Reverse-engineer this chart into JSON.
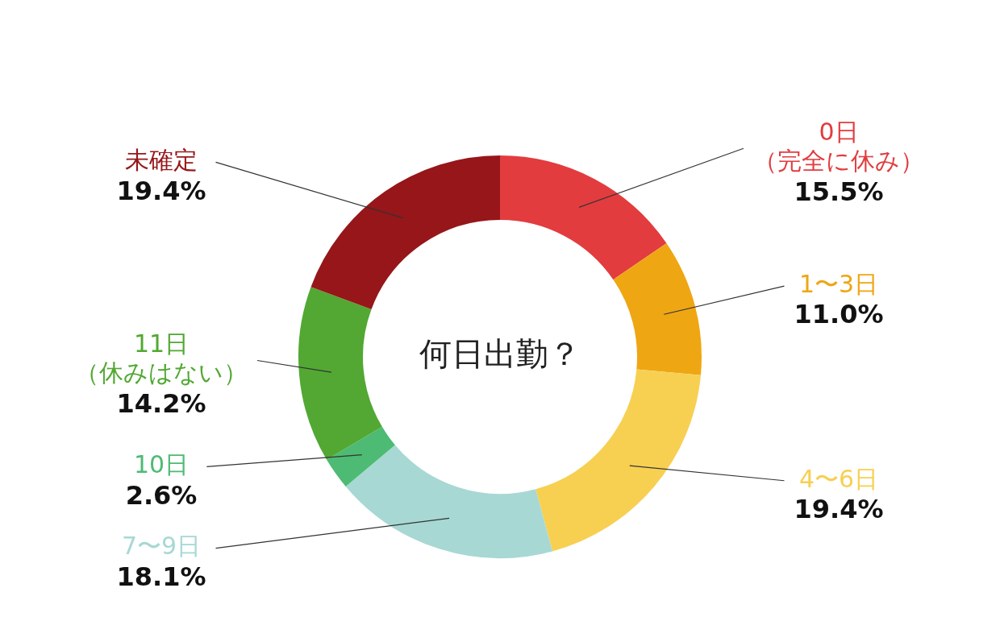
{
  "chart_data": {
    "type": "donut",
    "title": "何日出勤？",
    "categories": [
      "0日（完全に休み）",
      "1〜3日",
      "4〜6日",
      "7〜9日",
      "10日",
      "11日（休みはない）",
      "未確定"
    ],
    "values": [
      15.5,
      11.0,
      19.4,
      18.1,
      2.6,
      14.2,
      19.4
    ],
    "value_labels": [
      "15.5%",
      "11.0%",
      "19.4%",
      "18.1%",
      "2.6%",
      "14.2%",
      "19.4%"
    ],
    "colors": [
      "#e23c3f",
      "#efa613",
      "#f7d052",
      "#a7d8d4",
      "#4dbb73",
      "#52a833",
      "#961619"
    ],
    "legend": false
  }
}
